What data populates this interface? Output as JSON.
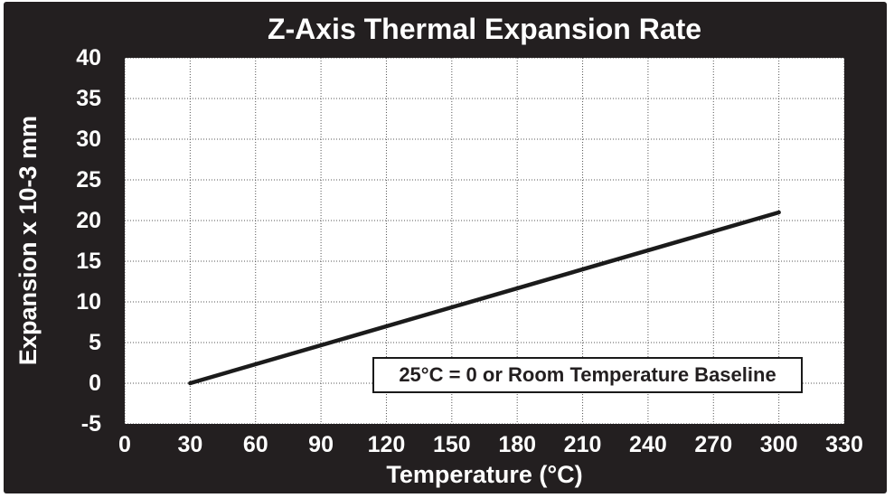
{
  "chart_data": {
    "type": "line",
    "title": "Z-Axis Thermal Expansion Rate",
    "xlabel": "Temperature (°C)",
    "ylabel": "Expansion x 10-3 mm",
    "xlim": [
      0,
      330
    ],
    "ylim": [
      -5,
      40
    ],
    "xticks": [
      0,
      30,
      60,
      90,
      120,
      150,
      180,
      210,
      240,
      270,
      300,
      330
    ],
    "yticks": [
      40,
      35,
      30,
      25,
      20,
      15,
      10,
      5,
      0,
      -5
    ],
    "grid": true,
    "legend": false,
    "annotation": "25°C = 0 or Room Temperature Baseline",
    "series": [
      {
        "name": "z-axis-expansion",
        "x": [
          30,
          300
        ],
        "y": [
          0,
          21
        ]
      }
    ],
    "colors": {
      "frame_background": "#231f20",
      "plot_background": "#ffffff",
      "text_on_frame": "#ffffff",
      "grid": "#555555",
      "line": "#1b1b1b"
    }
  }
}
